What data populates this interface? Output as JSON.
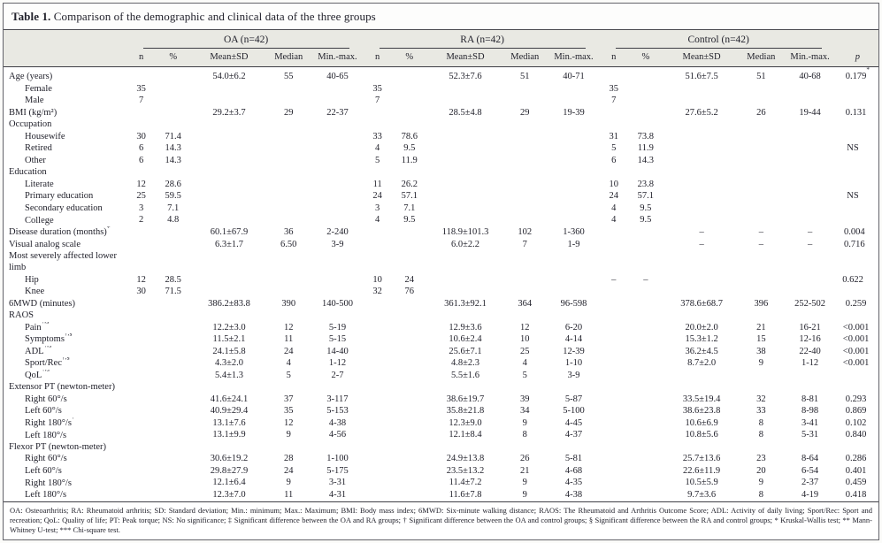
{
  "title": {
    "label": "Table 1.",
    "text": " Comparison of the demographic and clinical data of the three groups"
  },
  "table": {
    "groups": [
      {
        "name": "OA (n=42)"
      },
      {
        "name": "RA (n=42)"
      },
      {
        "name": "Control (n=42)"
      }
    ],
    "subheaders": [
      "n",
      "%",
      "Mean±SD",
      "Median",
      "Min.-max."
    ],
    "p_header": "p",
    "rows": [
      {
        "label": "Age (years)",
        "indent": 0,
        "cells": [
          "",
          "",
          "54.0±6.2",
          "55",
          "40-65",
          "",
          "",
          "52.3±7.6",
          "51",
          "40-71",
          "",
          "",
          "51.6±7.5",
          "51",
          "40-68"
        ],
        "p": "0.179*"
      },
      {
        "label": "Female",
        "indent": 1,
        "cells": [
          "35",
          "",
          "",
          "",
          "",
          "35",
          "",
          "",
          "",
          "",
          "35",
          "",
          "",
          "",
          ""
        ],
        "p": ""
      },
      {
        "label": "Male",
        "indent": 1,
        "cells": [
          "7",
          "",
          "",
          "",
          "",
          "7",
          "",
          "",
          "",
          "",
          "7",
          "",
          "",
          "",
          ""
        ],
        "p": ""
      },
      {
        "label": "BMI (kg/m²)",
        "indent": 0,
        "cells": [
          "",
          "",
          "29.2±3.7",
          "29",
          "22-37",
          "",
          "",
          "28.5±4.8",
          "29",
          "19-39",
          "",
          "",
          "27.6±5.2",
          "26",
          "19-44"
        ],
        "p": "0.131*"
      },
      {
        "label": "Occupation",
        "indent": 0,
        "cells": [
          "",
          "",
          "",
          "",
          "",
          "",
          "",
          "",
          "",
          "",
          "",
          "",
          "",
          "",
          ""
        ],
        "p": ""
      },
      {
        "label": "Housewife",
        "indent": 1,
        "cells": [
          "30",
          "71.4",
          "",
          "",
          "",
          "33",
          "78.6",
          "",
          "",
          "",
          "31",
          "73.8",
          "",
          "",
          ""
        ],
        "p": ""
      },
      {
        "label": "Retired",
        "indent": 1,
        "cells": [
          "6",
          "14.3",
          "",
          "",
          "",
          "4",
          "9.5",
          "",
          "",
          "",
          "5",
          "11.9",
          "",
          "",
          ""
        ],
        "p": "NS***"
      },
      {
        "label": "Other",
        "indent": 1,
        "cells": [
          "6",
          "14.3",
          "",
          "",
          "",
          "5",
          "11.9",
          "",
          "",
          "",
          "6",
          "14.3",
          "",
          "",
          ""
        ],
        "p": ""
      },
      {
        "label": "Education",
        "indent": 0,
        "cells": [
          "",
          "",
          "",
          "",
          "",
          "",
          "",
          "",
          "",
          "",
          "",
          "",
          "",
          "",
          ""
        ],
        "p": ""
      },
      {
        "label": "Literate",
        "indent": 1,
        "cells": [
          "12",
          "28.6",
          "",
          "",
          "",
          "11",
          "26.2",
          "",
          "",
          "",
          "10",
          "23.8",
          "",
          "",
          ""
        ],
        "p": ""
      },
      {
        "label": "Primary education",
        "indent": 1,
        "cells": [
          "25",
          "59.5",
          "",
          "",
          "",
          "24",
          "57.1",
          "",
          "",
          "",
          "24",
          "57.1",
          "",
          "",
          ""
        ],
        "p": "NS***"
      },
      {
        "label": "Secondary education",
        "indent": 1,
        "cells": [
          "3",
          "7.1",
          "",
          "",
          "",
          "3",
          "7.1",
          "",
          "",
          "",
          "4",
          "9.5",
          "",
          "",
          ""
        ],
        "p": ""
      },
      {
        "label": "College",
        "indent": 1,
        "cells": [
          "2",
          "4.8",
          "",
          "",
          "",
          "4",
          "9.5",
          "",
          "",
          "",
          "4",
          "9.5",
          "",
          "",
          ""
        ],
        "p": ""
      },
      {
        "label": "Disease duration (months)‡",
        "indent": 0,
        "cells": [
          "",
          "",
          "60.1±67.9",
          "36",
          "2-240",
          "",
          "",
          "118.9±101.3",
          "102",
          "1-360",
          "",
          "",
          "–",
          "–",
          "–"
        ],
        "p": "0.004**"
      },
      {
        "label": "Visual analog scale",
        "indent": 0,
        "cells": [
          "",
          "",
          "6.3±1.7",
          "6.50",
          "3-9",
          "",
          "",
          "6.0±2.2",
          "7",
          "1-9",
          "",
          "",
          "–",
          "–",
          "–"
        ],
        "p": "0.716**"
      },
      {
        "label": "Most severely affected lower limb",
        "indent": 0,
        "cells": [
          "",
          "",
          "",
          "",
          "",
          "",
          "",
          "",
          "",
          "",
          "",
          "",
          "",
          "",
          ""
        ],
        "p": ""
      },
      {
        "label": "Hip",
        "indent": 1,
        "cells": [
          "12",
          "28.5",
          "",
          "",
          "",
          "10",
          "24",
          "",
          "",
          "",
          "–",
          "–",
          "",
          "",
          ""
        ],
        "p": "0.622***"
      },
      {
        "label": "Knee",
        "indent": 1,
        "cells": [
          "30",
          "71.5",
          "",
          "",
          "",
          "32",
          "76",
          "",
          "",
          "",
          "",
          "",
          "",
          "",
          ""
        ],
        "p": ""
      },
      {
        "label": "6MWD (minutes)",
        "indent": 0,
        "cells": [
          "",
          "",
          "386.2±83.8",
          "390",
          "140-500",
          "",
          "",
          "361.3±92.1",
          "364",
          "96-598",
          "",
          "",
          "378.6±68.7",
          "396",
          "252-502"
        ],
        "p": "0.259*"
      },
      {
        "label": "RAOS",
        "indent": 0,
        "cells": [
          "",
          "",
          "",
          "",
          "",
          "",
          "",
          "",
          "",
          "",
          "",
          "",
          "",
          "",
          ""
        ],
        "p": ""
      },
      {
        "label": "Pain†,§",
        "indent": 1,
        "cells": [
          "",
          "",
          "12.2±3.0",
          "12",
          "5-19",
          "",
          "",
          "12.9±3.6",
          "12",
          "6-20",
          "",
          "",
          "20.0±2.0",
          "21",
          "16-21"
        ],
        "p": "<0.001*"
      },
      {
        "label": "Symptoms†,§",
        "indent": 1,
        "cells": [
          "",
          "",
          "11.5±2.1",
          "11",
          "5-15",
          "",
          "",
          "10.6±2.4",
          "10",
          "4-14",
          "",
          "",
          "15.3±1.2",
          "15",
          "12-16"
        ],
        "p": "<0.001*"
      },
      {
        "label": "ADL†,§",
        "indent": 1,
        "cells": [
          "",
          "",
          "24.1±5.8",
          "24",
          "14-40",
          "",
          "",
          "25.6±7.1",
          "25",
          "12-39",
          "",
          "",
          "36.2±4.5",
          "38",
          "22-40"
        ],
        "p": "<0.001*"
      },
      {
        "label": "Sport/Rec†,§",
        "indent": 1,
        "cells": [
          "",
          "",
          "4.3±2.0",
          "4",
          "1-12",
          "",
          "",
          "4.8±2.3",
          "4",
          "1-10",
          "",
          "",
          "8.7±2.0",
          "9",
          "1-12"
        ],
        "p": "<0.001*"
      },
      {
        "label": "QoL†,§",
        "indent": 1,
        "cells": [
          "",
          "",
          "5.4±1.3",
          "5",
          "2-7",
          "",
          "",
          "5.5±1.6",
          "5",
          "3-9",
          "",
          "",
          "",
          "",
          ""
        ],
        "p": ""
      },
      {
        "label": "Extensor PT (newton-meter)",
        "indent": 0,
        "cells": [
          "",
          "",
          "",
          "",
          "",
          "",
          "",
          "",
          "",
          "",
          "",
          "",
          "",
          "",
          ""
        ],
        "p": ""
      },
      {
        "label": "Right 60°/s",
        "indent": 1,
        "cells": [
          "",
          "",
          "41.6±24.1",
          "37",
          "3-117",
          "",
          "",
          "38.6±19.7",
          "39",
          "5-87",
          "",
          "",
          "33.5±19.4",
          "32",
          "8-81"
        ],
        "p": "0.293*"
      },
      {
        "label": "Left 60°/s",
        "indent": 1,
        "cells": [
          "",
          "",
          "40.9±29.4",
          "35",
          "5-153",
          "",
          "",
          "35.8±21.8",
          "34",
          "5-100",
          "",
          "",
          "38.6±23.8",
          "33",
          "8-98"
        ],
        "p": "0.869*"
      },
      {
        "label": "Right 180°/s†",
        "indent": 1,
        "cells": [
          "",
          "",
          "13.1±7.6",
          "12",
          "4-38",
          "",
          "",
          "12.3±9.0",
          "9",
          "4-45",
          "",
          "",
          "10.6±6.9",
          "8",
          "3-41"
        ],
        "p": "0.102*"
      },
      {
        "label": "Left 180°/s",
        "indent": 1,
        "cells": [
          "",
          "",
          "13.1±9.9",
          "9",
          "4-56",
          "",
          "",
          "12.1±8.4",
          "8",
          "4-37",
          "",
          "",
          "10.8±5.6",
          "8",
          "5-31"
        ],
        "p": "0.840*"
      },
      {
        "label": "Flexor PT (newton-meter)",
        "indent": 0,
        "cells": [
          "",
          "",
          "",
          "",
          "",
          "",
          "",
          "",
          "",
          "",
          "",
          "",
          "",
          "",
          ""
        ],
        "p": ""
      },
      {
        "label": "Right 60°/s",
        "indent": 1,
        "cells": [
          "",
          "",
          "30.6±19.2",
          "28",
          "1-100",
          "",
          "",
          "24.9±13.8",
          "26",
          "5-81",
          "",
          "",
          "25.7±13.6",
          "23",
          "8-64"
        ],
        "p": "0.286*"
      },
      {
        "label": "Left 60°/s",
        "indent": 1,
        "cells": [
          "",
          "",
          "29.8±27.9",
          "24",
          "5-175",
          "",
          "",
          "23.5±13.2",
          "21",
          "4-68",
          "",
          "",
          "22.6±11.9",
          "20",
          "6-54"
        ],
        "p": "0.401*"
      },
      {
        "label": "Right 180°/s",
        "indent": 1,
        "cells": [
          "",
          "",
          "12.1±6.4",
          "9",
          "3-31",
          "",
          "",
          "11.4±7.2",
          "9",
          "4-35",
          "",
          "",
          "10.5±5.9",
          "9",
          "2-37"
        ],
        "p": "0.459*"
      },
      {
        "label": "Left 180°/s",
        "indent": 1,
        "cells": [
          "",
          "",
          "12.3±7.0",
          "11",
          "4-31",
          "",
          "",
          "11.6±7.8",
          "9",
          "4-38",
          "",
          "",
          "9.7±3.6",
          "8",
          "4-19"
        ],
        "p": "0.418*"
      }
    ]
  },
  "footnote": "OA: Osteoarthritis; RA: Rheumatoid arthritis; SD: Standard deviation; Min.: minimum; Max.: Maximum; BMI: Body mass index; 6MWD: Six-minute walking distance; RAOS: The Rheumatoid and Arthritis Outcome Score; ADL: Activity of daily living; Sport/Rec: Sport and recreation; QoL: Quality of life; PT: Peak torque; NS: No significance; ‡ Significant difference between the OA and RA groups; † Significant difference between the OA and control groups; § Significant difference between the RA and control groups; * Kruskal-Wallis test; ** Mann-Whitney U-test; *** Chi-square test."
}
